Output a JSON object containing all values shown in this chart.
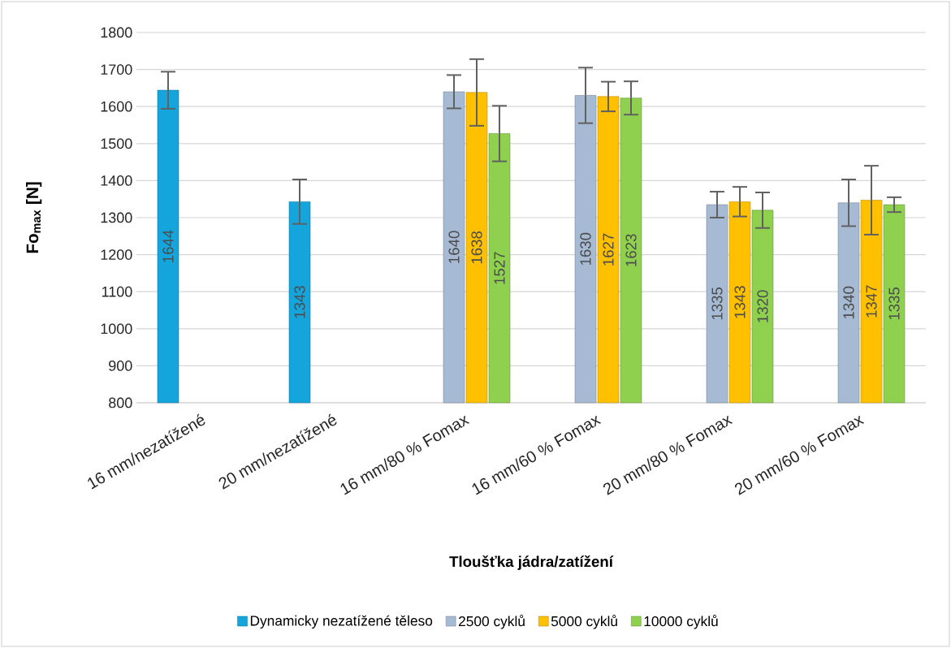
{
  "chart_data": {
    "type": "bar",
    "xlabel": "Tloušťka jádra/zatížení",
    "ylabel": "Fo$_{max}$ [N]",
    "categories": [
      "16 mm/nezatížené",
      "20 mm/nezatížené",
      "16 mm/80 % Fomax",
      "16 mm/60 % Fomax",
      "20 mm/80 % Fomax",
      "20 mm/60 % Fomax"
    ],
    "series": [
      {
        "name": "Dynamicky nezatížené těleso",
        "color": "#14a5dc",
        "values": [
          1644,
          1343,
          null,
          null,
          null,
          null
        ],
        "errors": [
          50,
          60,
          null,
          null,
          null,
          null
        ]
      },
      {
        "name": "2500 cyklů",
        "color": "#a6bad3",
        "values": [
          null,
          null,
          1640,
          1630,
          1335,
          1340
        ],
        "errors": [
          null,
          null,
          45,
          75,
          35,
          63
        ]
      },
      {
        "name": "5000 cyklů",
        "color": "#ffc000",
        "values": [
          null,
          null,
          1638,
          1627,
          1343,
          1347
        ],
        "errors": [
          null,
          null,
          90,
          40,
          40,
          93
        ]
      },
      {
        "name": "10000 cyklů",
        "color": "#8fd14f",
        "values": [
          null,
          null,
          1527,
          1623,
          1320,
          1335
        ],
        "errors": [
          null,
          null,
          75,
          45,
          48,
          20
        ]
      }
    ],
    "ylim": [
      800,
      1800
    ],
    "yticks": [
      800,
      900,
      1000,
      1100,
      1200,
      1300,
      1400,
      1500,
      1600,
      1700,
      1800
    ],
    "grid": "y",
    "legend": "bottom",
    "data_labels": true
  }
}
